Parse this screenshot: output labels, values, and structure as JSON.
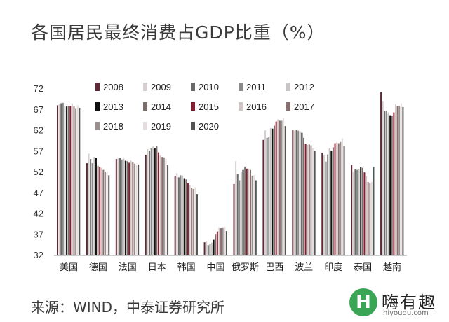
{
  "header": {
    "title": "各国居民最终消费占GDP比重（%）"
  },
  "footer": {
    "source": "来源：WIND，中泰证券研究所"
  },
  "watermark": {
    "mark": "H",
    "brand": "嗨有趣",
    "url": "hiyouqu.com"
  },
  "chart_data": {
    "type": "bar",
    "title": "各国居民最终消费占GDP比重（%）",
    "xlabel": "",
    "ylabel": "",
    "ylim": [
      32,
      72
    ],
    "yticks": [
      72,
      67,
      62,
      57,
      52,
      47,
      42,
      37,
      32
    ],
    "legend_position": "top",
    "categories": [
      "美国",
      "德国",
      "法国",
      "日本",
      "韩国",
      "中国",
      "俄罗斯",
      "巴西",
      "波兰",
      "印度",
      "泰国",
      "越南"
    ],
    "colors": [
      "#5e2a35",
      "#d7cfcf",
      "#6a6a6a",
      "#8a8a8a",
      "#c9c5c5",
      "#111111",
      "#7a6f6a",
      "#8a1a30",
      "#d0c6c6",
      "#8a6e6e",
      "#9a8f8f",
      "#e5dddd",
      "#555555"
    ],
    "series": [
      {
        "name": "2008",
        "values": [
          67.9,
          54.0,
          55.0,
          56.0,
          51.0,
          35.0,
          49.0,
          59.6,
          62.0,
          56.5,
          53.6,
          71.0
        ]
      },
      {
        "name": "2009",
        "values": [
          68.3,
          56.3,
          55.4,
          57.4,
          51.6,
          35.2,
          54.5,
          61.9,
          61.8,
          56.0,
          51.9,
          68.9
        ]
      },
      {
        "name": "2010",
        "values": [
          68.4,
          55.0,
          55.2,
          57.0,
          50.6,
          34.3,
          51.4,
          60.1,
          62.0,
          54.4,
          52.5,
          66.5
        ]
      },
      {
        "name": "2011",
        "values": [
          68.5,
          54.0,
          54.9,
          57.6,
          51.1,
          34.5,
          49.9,
          60.4,
          61.8,
          56.1,
          52.4,
          66.6
        ]
      },
      {
        "name": "2012",
        "values": [
          67.8,
          55.5,
          55.1,
          58.0,
          51.1,
          34.9,
          51.8,
          62.4,
          61.6,
          57.6,
          52.5,
          66.2
        ]
      },
      {
        "name": "2013",
        "values": [
          67.6,
          55.3,
          54.6,
          57.6,
          50.4,
          35.6,
          52.4,
          62.3,
          61.3,
          57.0,
          53.0,
          65.5
        ]
      },
      {
        "name": "2014",
        "values": [
          67.8,
          53.4,
          54.5,
          58.1,
          50.1,
          37.0,
          53.2,
          63.0,
          60.1,
          57.8,
          52.9,
          65.4
        ]
      },
      {
        "name": "2015",
        "values": [
          67.7,
          53.1,
          54.1,
          56.6,
          49.3,
          37.6,
          52.7,
          64.0,
          58.7,
          58.8,
          51.8,
          66.2
        ]
      },
      {
        "name": "2016",
        "values": [
          68.2,
          52.9,
          54.6,
          55.9,
          48.8,
          38.6,
          52.5,
          64.5,
          58.4,
          59.0,
          50.9,
          68.1
        ]
      },
      {
        "name": "2017",
        "values": [
          67.6,
          52.4,
          54.3,
          55.5,
          48.0,
          38.5,
          52.4,
          64.2,
          58.5,
          58.8,
          49.5,
          67.7
        ]
      },
      {
        "name": "2018",
        "values": [
          67.2,
          52.0,
          53.9,
          55.4,
          47.8,
          38.6,
          51.0,
          64.2,
          58.3,
          59.1,
          49.2,
          67.7
        ]
      },
      {
        "name": "2019",
        "values": [
          67.9,
          52.0,
          53.7,
          55.1,
          48.2,
          38.7,
          51.1,
          64.9,
          57.6,
          60.0,
          49.5,
          68.4
        ]
      },
      {
        "name": "2020",
        "values": [
          67.3,
          51.1,
          53.7,
          53.6,
          46.6,
          37.7,
          49.9,
          62.9,
          57.0,
          58.2,
          53.1,
          67.5
        ]
      }
    ]
  }
}
